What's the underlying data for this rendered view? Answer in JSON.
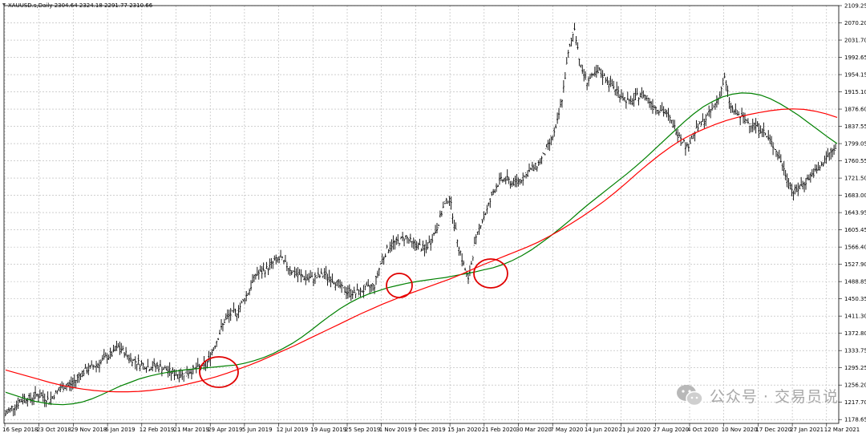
{
  "header": {
    "symbol_line": "XAUUSD.s,Daily  2304.64 2324.18 2291.77 2310.66"
  },
  "watermark": {
    "text": "公众号 · 交易员说",
    "icon": "wechat-icon"
  },
  "colors": {
    "candles": "#000000",
    "grid": "#b4b4b4",
    "ma_green": "#008000",
    "ma_red": "#ff0000",
    "highlight_circle": "#e00000"
  },
  "chart_data": {
    "type": "line",
    "title": "XAUUSD.s,Daily",
    "xlabel": "",
    "ylabel": "",
    "ylim": [
      1170.0,
      2109.25
    ],
    "grid": true,
    "y_ticks": [
      "2109.25",
      "2070.20",
      "2031.70",
      "1992.65",
      "1954.15",
      "1915.10",
      "1876.60",
      "1837.55",
      "1799.05",
      "1760.55",
      "1721.50",
      "1683.00",
      "1643.95",
      "1605.45",
      "1566.40",
      "1527.90",
      "1488.85",
      "1450.35",
      "1411.30",
      "1372.80",
      "1333.75",
      "1295.25",
      "1256.20",
      "1217.70",
      "1178.65"
    ],
    "x_ticks": [
      "16 Sep 2018",
      "23 Oct 2018",
      "29 Nov 2018",
      "6 Jan 2019",
      "12 Feb 2019",
      "21 Mar 2019",
      "29 Apr 2019",
      "5 Jun 2019",
      "12 Jul 2019",
      "19 Aug 2019",
      "25 Sep 2019",
      "1 Nov 2019",
      "9 Dec 2019",
      "15 Jan 2020",
      "21 Feb 2020",
      "30 Mar 2020",
      "7 May 2020",
      "14 Jun 2020",
      "21 Jul 2020",
      "27 Aug 2020",
      "4 Oct 2020",
      "10 Nov 2020",
      "17 Dec 2020",
      "27 Jan 2021",
      "12 Mar 2021"
    ],
    "price": [
      1190,
      1205,
      1215,
      1228,
      1225,
      1235,
      1230,
      1222,
      1238,
      1250,
      1255,
      1262,
      1282,
      1290,
      1298,
      1305,
      1318,
      1325,
      1342,
      1330,
      1315,
      1308,
      1302,
      1296,
      1300,
      1295,
      1288,
      1282,
      1280,
      1284,
      1290,
      1296,
      1300,
      1330,
      1365,
      1400,
      1415,
      1420,
      1445,
      1470,
      1505,
      1510,
      1520,
      1535,
      1540,
      1525,
      1510,
      1502,
      1498,
      1495,
      1500,
      1505,
      1497,
      1485,
      1470,
      1465,
      1463,
      1468,
      1475,
      1480,
      1530,
      1560,
      1575,
      1580,
      1590,
      1575,
      1570,
      1560,
      1580,
      1610,
      1655,
      1680,
      1600,
      1540,
      1490,
      1570,
      1620,
      1650,
      1690,
      1715,
      1720,
      1710,
      1715,
      1725,
      1740,
      1750,
      1770,
      1800,
      1830,
      1900,
      2000,
      2060,
      1970,
      1940,
      1950,
      1960,
      1945,
      1930,
      1915,
      1900,
      1890,
      1905,
      1910,
      1895,
      1880,
      1875,
      1860,
      1835,
      1815,
      1790,
      1820,
      1840,
      1855,
      1875,
      1900,
      1945,
      1880,
      1865,
      1855,
      1845,
      1840,
      1830,
      1810,
      1790,
      1760,
      1720,
      1690,
      1700,
      1715,
      1730,
      1740,
      1760,
      1780,
      1790
    ],
    "series": [
      {
        "color": "#008000",
        "values": [
          1240,
          1233,
          1226,
          1220,
          1216,
          1213,
          1212,
          1214,
          1218,
          1225,
          1234,
          1244,
          1254,
          1262,
          1270,
          1276,
          1281,
          1285,
          1288,
          1291,
          1293,
          1295,
          1297,
          1299,
          1301,
          1305,
          1311,
          1318,
          1327,
          1338,
          1350,
          1364,
          1380,
          1397,
          1413,
          1428,
          1441,
          1452,
          1461,
          1468,
          1475,
          1480,
          1485,
          1489,
          1492,
          1495,
          1498,
          1502,
          1506,
          1510,
          1515,
          1520,
          1527,
          1536,
          1547,
          1560,
          1575,
          1591,
          1608,
          1626,
          1645,
          1663,
          1680,
          1697,
          1714,
          1731,
          1749,
          1768,
          1788,
          1808,
          1828,
          1848,
          1866,
          1882,
          1894,
          1904,
          1910,
          1913,
          1912,
          1908,
          1900,
          1889,
          1876,
          1862,
          1846,
          1830,
          1814,
          1799
        ]
      },
      {
        "color": "#ff0000",
        "values": [
          1290,
          1283,
          1276,
          1269,
          1262,
          1256,
          1251,
          1247,
          1244,
          1242,
          1241,
          1241,
          1242,
          1244,
          1247,
          1251,
          1256,
          1262,
          1268,
          1275,
          1283,
          1292,
          1301,
          1311,
          1322,
          1333,
          1344,
          1356,
          1368,
          1380,
          1392,
          1404,
          1416,
          1427,
          1438,
          1448,
          1458,
          1467,
          1476,
          1485,
          1494,
          1504,
          1515,
          1526,
          1536,
          1546,
          1556,
          1566,
          1577,
          1590,
          1604,
          1619,
          1635,
          1652,
          1670,
          1690,
          1711,
          1733,
          1754,
          1774,
          1792,
          1808,
          1821,
          1832,
          1842,
          1851,
          1858,
          1864,
          1869,
          1873,
          1876,
          1877,
          1876,
          1872,
          1866,
          1858
        ]
      }
    ]
  }
}
